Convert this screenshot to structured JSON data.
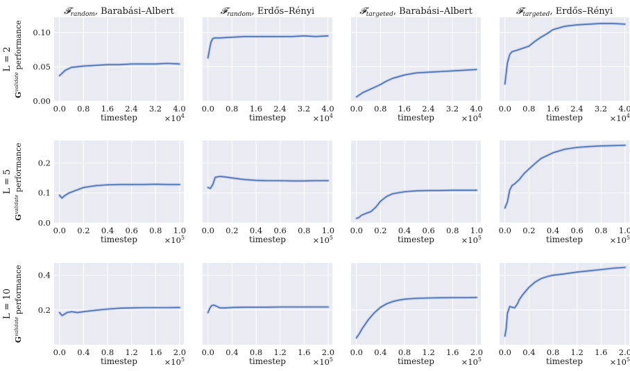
{
  "chart_data": {
    "type": "line",
    "layout": "grid 3 rows x 4 columns, y axis shared across each row",
    "grid": true,
    "legend": "none",
    "series_color": "#4c72b0",
    "band_color": "#b7c6e6",
    "background": "#eaeaf2",
    "column_titles": [
      {
        "main": "𝓕",
        "sub": "random",
        "rest": ", Barabási–Albert"
      },
      {
        "main": "𝓕",
        "sub": "random",
        "rest": ", Erdős–Rényi"
      },
      {
        "main": "𝓕",
        "sub": "targeted",
        "rest": ", Barabási–Albert"
      },
      {
        "main": "𝓕",
        "sub": "targeted",
        "rest": ", Erdős–Rényi"
      }
    ],
    "row_labels": [
      "L = 2",
      "L = 5",
      "L = 10"
    ],
    "ylabel": {
      "main": "G",
      "sup": "validate",
      "rest": " performance"
    },
    "xlabel": "timestep",
    "rows": [
      {
        "label": "L = 2",
        "xlim": [
          -1800,
          41500
        ],
        "xticks": [
          "0.0",
          "0.8",
          "1.6",
          "2.4",
          "3.2",
          "4.0"
        ],
        "xtick_values": [
          0,
          8000,
          16000,
          24000,
          32000,
          40000
        ],
        "x_scale": "×10",
        "x_scale_exp": "4",
        "ylim": [
          0,
          0.122
        ],
        "yticks": [
          "0.00",
          "0.05",
          "0.10"
        ],
        "ytick_values": [
          0,
          0.05,
          0.1
        ],
        "panels": [
          {
            "x": [
              0,
              1000,
              2000,
              4000,
              6000,
              8000,
              12000,
              16000,
              20000,
              24000,
              28000,
              32000,
              36000,
              40000
            ],
            "y": [
              0.037,
              0.041,
              0.045,
              0.049,
              0.05,
              0.051,
              0.052,
              0.053,
              0.053,
              0.054,
              0.054,
              0.054,
              0.055,
              0.054
            ]
          },
          {
            "x": [
              0,
              500,
              1000,
              1600,
              2400,
              4000,
              8000,
              12000,
              16000,
              20000,
              24000,
              28000,
              32000,
              36000,
              40000
            ],
            "y": [
              0.063,
              0.075,
              0.086,
              0.091,
              0.092,
              0.092,
              0.093,
              0.094,
              0.094,
              0.094,
              0.094,
              0.094,
              0.095,
              0.094,
              0.095
            ]
          },
          {
            "x": [
              0,
              1000,
              2000,
              4000,
              6000,
              8000,
              10000,
              12000,
              16000,
              20000,
              24000,
              28000,
              32000,
              36000,
              40000
            ],
            "y": [
              0.006,
              0.009,
              0.012,
              0.016,
              0.02,
              0.024,
              0.029,
              0.033,
              0.038,
              0.041,
              0.042,
              0.043,
              0.044,
              0.045,
              0.046
            ]
          },
          {
            "x": [
              0,
              800,
              1600,
              2400,
              4000,
              6000,
              8000,
              10000,
              12000,
              14000,
              16000,
              20000,
              24000,
              28000,
              32000,
              36000,
              40000
            ],
            "y": [
              0.025,
              0.055,
              0.068,
              0.072,
              0.074,
              0.077,
              0.08,
              0.087,
              0.093,
              0.098,
              0.104,
              0.109,
              0.111,
              0.112,
              0.113,
              0.113,
              0.112
            ]
          }
        ]
      },
      {
        "label": "L = 5",
        "xlim": [
          -4500,
          103500
        ],
        "xticks": [
          "0.0",
          "0.2",
          "0.4",
          "0.6",
          "0.8",
          "1.0"
        ],
        "xtick_values": [
          0,
          20000,
          40000,
          60000,
          80000,
          100000
        ],
        "x_scale": "×10",
        "x_scale_exp": "5",
        "ylim": [
          0,
          0.275
        ],
        "yticks": [
          "0.0",
          "0.1",
          "0.2"
        ],
        "ytick_values": [
          0,
          0.1,
          0.2
        ],
        "panels": [
          {
            "x": [
              0,
              2000,
              4000,
              8000,
              12000,
              16000,
              20000,
              30000,
              40000,
              50000,
              60000,
              70000,
              80000,
              90000,
              100000
            ],
            "y": [
              0.092,
              0.083,
              0.09,
              0.1,
              0.106,
              0.112,
              0.118,
              0.124,
              0.127,
              0.128,
              0.128,
              0.128,
              0.129,
              0.128,
              0.128
            ]
          },
          {
            "x": [
              0,
              2000,
              4000,
              6000,
              10000,
              15000,
              20000,
              30000,
              40000,
              50000,
              60000,
              70000,
              80000,
              90000,
              100000
            ],
            "y": [
              0.118,
              0.115,
              0.128,
              0.152,
              0.155,
              0.153,
              0.15,
              0.145,
              0.142,
              0.141,
              0.141,
              0.14,
              0.14,
              0.141,
              0.141
            ]
          },
          {
            "x": [
              0,
              2000,
              4000,
              8000,
              12000,
              16000,
              20000,
              25000,
              30000,
              40000,
              50000,
              60000,
              70000,
              80000,
              90000,
              100000
            ],
            "y": [
              0.015,
              0.018,
              0.025,
              0.032,
              0.038,
              0.052,
              0.072,
              0.088,
              0.097,
              0.104,
              0.107,
              0.108,
              0.108,
              0.109,
              0.109,
              0.109
            ]
          },
          {
            "x": [
              0,
              2000,
              4000,
              6000,
              8000,
              12000,
              16000,
              20000,
              25000,
              30000,
              40000,
              50000,
              60000,
              70000,
              80000,
              90000,
              100000
            ],
            "y": [
              0.05,
              0.07,
              0.11,
              0.125,
              0.13,
              0.145,
              0.165,
              0.18,
              0.198,
              0.215,
              0.234,
              0.246,
              0.252,
              0.255,
              0.257,
              0.258,
              0.259
            ]
          }
        ]
      },
      {
        "label": "L = 10",
        "xlim": [
          -9000,
          207000
        ],
        "xticks": [
          "0.0",
          "0.4",
          "0.8",
          "1.2",
          "1.6",
          "2.0"
        ],
        "xtick_values": [
          0,
          40000,
          80000,
          120000,
          160000,
          200000
        ],
        "x_scale": "×10",
        "x_scale_exp": "5",
        "ylim": [
          0.0,
          0.47
        ],
        "yticks": [
          "0.2",
          "0.4"
        ],
        "ytick_values": [
          0.2,
          0.4
        ],
        "panels": [
          {
            "x": [
              0,
              4000,
              8000,
              12000,
              20000,
              30000,
              40000,
              60000,
              80000,
              100000,
              120000,
              140000,
              160000,
              180000,
              200000
            ],
            "y": [
              0.185,
              0.168,
              0.175,
              0.185,
              0.19,
              0.185,
              0.19,
              0.198,
              0.205,
              0.21,
              0.212,
              0.213,
              0.213,
              0.213,
              0.214
            ]
          },
          {
            "x": [
              0,
              3000,
              6000,
              10000,
              15000,
              20000,
              30000,
              40000,
              60000,
              80000,
              100000,
              120000,
              140000,
              160000,
              180000,
              200000
            ],
            "y": [
              0.185,
              0.21,
              0.225,
              0.228,
              0.22,
              0.212,
              0.212,
              0.214,
              0.216,
              0.216,
              0.216,
              0.217,
              0.217,
              0.217,
              0.217,
              0.217
            ]
          },
          {
            "x": [
              0,
              5000,
              10000,
              15000,
              20000,
              30000,
              40000,
              50000,
              60000,
              70000,
              80000,
              100000,
              120000,
              140000,
              160000,
              180000,
              200000
            ],
            "y": [
              0.04,
              0.065,
              0.095,
              0.12,
              0.145,
              0.185,
              0.215,
              0.235,
              0.248,
              0.256,
              0.262,
              0.267,
              0.269,
              0.27,
              0.271,
              0.271,
              0.272
            ]
          },
          {
            "x": [
              0,
              2000,
              4000,
              8000,
              12000,
              16000,
              20000,
              24000,
              30000,
              40000,
              50000,
              60000,
              70000,
              80000,
              100000,
              120000,
              140000,
              160000,
              180000,
              200000
            ],
            "y": [
              0.05,
              0.09,
              0.18,
              0.22,
              0.215,
              0.212,
              0.23,
              0.26,
              0.29,
              0.33,
              0.36,
              0.38,
              0.392,
              0.4,
              0.408,
              0.418,
              0.425,
              0.432,
              0.44,
              0.445
            ]
          }
        ]
      }
    ]
  }
}
